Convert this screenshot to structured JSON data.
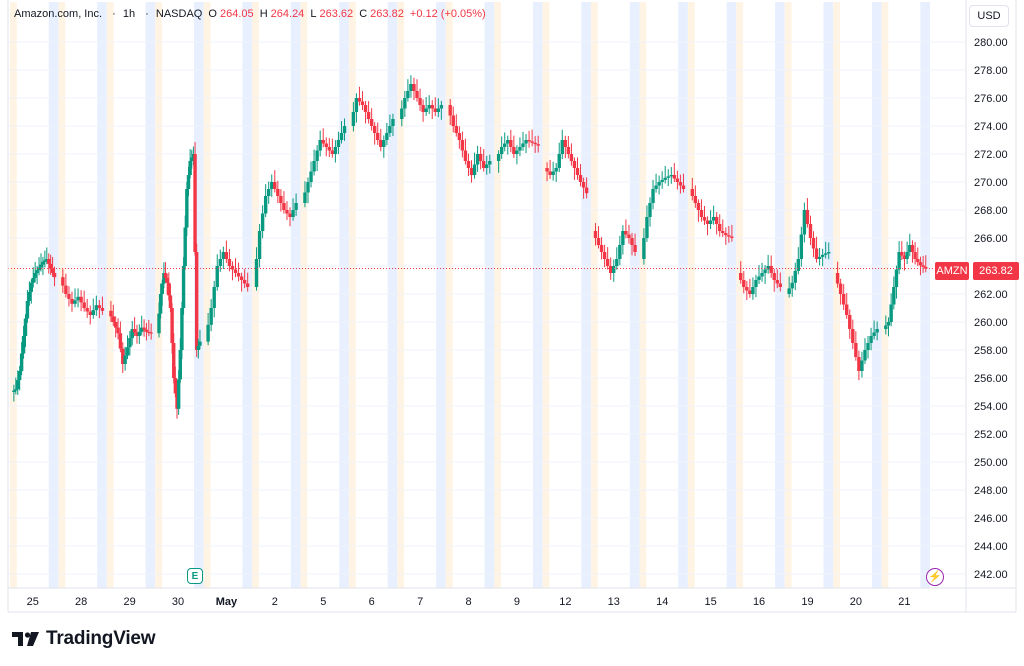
{
  "legend": {
    "symbol": "Amazon.com, Inc.",
    "interval": "1h",
    "exchange": "NASDAQ",
    "o_label": "O",
    "o": "264.05",
    "h_label": "H",
    "h": "264.24",
    "l_label": "L",
    "l": "263.62",
    "c_label": "C",
    "c": "263.82",
    "change": "+0.12 (+0.05%)"
  },
  "currency": "USD",
  "last_price": {
    "symbol": "AMZN",
    "value": "263.82"
  },
  "earnings_marker": "E",
  "brand": "TradingView",
  "colors": {
    "up": "#089981",
    "down": "#f23645",
    "session_pre": "#fff3e3",
    "session_post": "#e8f0ff",
    "grid": "#f0f3fa",
    "axis_text": "#131722",
    "flash": "#9c27b0"
  },
  "chart_data": {
    "type": "candlestick",
    "title": "Amazon.com, Inc. · 1h · NASDAQ",
    "series_name": "AMZN",
    "y_axis": {
      "range": [
        241,
        281
      ],
      "ticks": [
        "242.00",
        "244.00",
        "246.00",
        "248.00",
        "250.00",
        "252.00",
        "254.00",
        "256.00",
        "258.00",
        "260.00",
        "262.00",
        "264.00",
        "266.00",
        "268.00",
        "270.00",
        "272.00",
        "274.00",
        "276.00",
        "278.00",
        "280.00"
      ],
      "position": "right"
    },
    "x_axis": {
      "ticks": [
        "25",
        "28",
        "29",
        "30",
        "May",
        "2",
        "5",
        "6",
        "7",
        "8",
        "9",
        "12",
        "13",
        "14",
        "15",
        "16",
        "19",
        "20",
        "21"
      ]
    },
    "last_close": 263.82,
    "grid": true,
    "sessions": [
      {
        "label": "25",
        "path": [
          255.0,
          255.2,
          256.5,
          259.0,
          261.5,
          262.8,
          263.5,
          263.9,
          264.3,
          264.5,
          263.8,
          263.2
        ]
      },
      {
        "label": "28",
        "path": [
          263.2,
          262.0,
          261.3,
          261.8,
          261.0,
          260.5,
          261.2,
          260.8
        ]
      },
      {
        "label": "29",
        "path": [
          260.8,
          260.0,
          259.2,
          257.0,
          258.2,
          259.5,
          259.0,
          259.6,
          259.3,
          259.2
        ]
      },
      {
        "label": "30",
        "path": [
          259.2,
          262.0,
          263.5,
          262.8,
          261.0,
          256.0,
          253.8,
          258.0,
          264.0,
          269.5,
          271.5,
          272.0,
          258.0,
          258.6
        ]
      },
      {
        "label": "May",
        "path": [
          258.6,
          261.0,
          264.0,
          265.0,
          264.0,
          263.5,
          263.0,
          262.5
        ]
      },
      {
        "label": "2",
        "path": [
          262.5,
          266.5,
          269.0,
          270.0,
          269.0,
          268.0,
          267.5,
          268.5
        ]
      },
      {
        "label": "5",
        "path": [
          268.5,
          270.0,
          271.5,
          273.0,
          272.5,
          272.0,
          273.0,
          274.0
        ]
      },
      {
        "label": "6",
        "path": [
          274.0,
          276.0,
          275.5,
          274.5,
          273.5,
          272.5,
          273.5,
          274.5
        ]
      },
      {
        "label": "7",
        "path": [
          274.5,
          276.0,
          277.0,
          276.0,
          275.0,
          275.5,
          275.0,
          275.5
        ]
      },
      {
        "label": "8",
        "path": [
          275.5,
          274.0,
          273.0,
          271.5,
          270.5,
          272.0,
          271.0,
          271.5
        ]
      },
      {
        "label": "9",
        "path": [
          271.5,
          272.5,
          273.0,
          272.0,
          272.5,
          273.0,
          272.8,
          272.6
        ]
      },
      {
        "label": "12",
        "path": [
          271.0,
          270.5,
          271.0,
          273.0,
          272.0,
          271.0,
          270.0,
          269.2
        ]
      },
      {
        "label": "13",
        "path": [
          266.5,
          265.5,
          264.5,
          263.5,
          264.5,
          266.5,
          266.0,
          265.0
        ]
      },
      {
        "label": "14",
        "path": [
          264.5,
          267.5,
          269.5,
          270.0,
          270.3,
          270.5,
          270.0,
          269.5
        ]
      },
      {
        "label": "15",
        "path": [
          269.5,
          268.5,
          267.5,
          267.0,
          267.5,
          266.5,
          266.2,
          266.0
        ]
      },
      {
        "label": "16",
        "path": [
          263.5,
          262.5,
          262.0,
          263.0,
          263.5,
          264.0,
          263.0,
          262.5
        ]
      },
      {
        "label": "19",
        "path": [
          262.0,
          262.8,
          264.5,
          268.0,
          266.0,
          264.5,
          264.8,
          265.0
        ]
      },
      {
        "label": "20",
        "path": [
          263.5,
          262.0,
          260.5,
          258.5,
          256.5,
          258.0,
          259.0,
          259.5
        ]
      },
      {
        "label": "21",
        "path": [
          259.5,
          260.0,
          262.5,
          265.0,
          264.5,
          265.5,
          264.5,
          264.05,
          263.82
        ]
      }
    ]
  }
}
